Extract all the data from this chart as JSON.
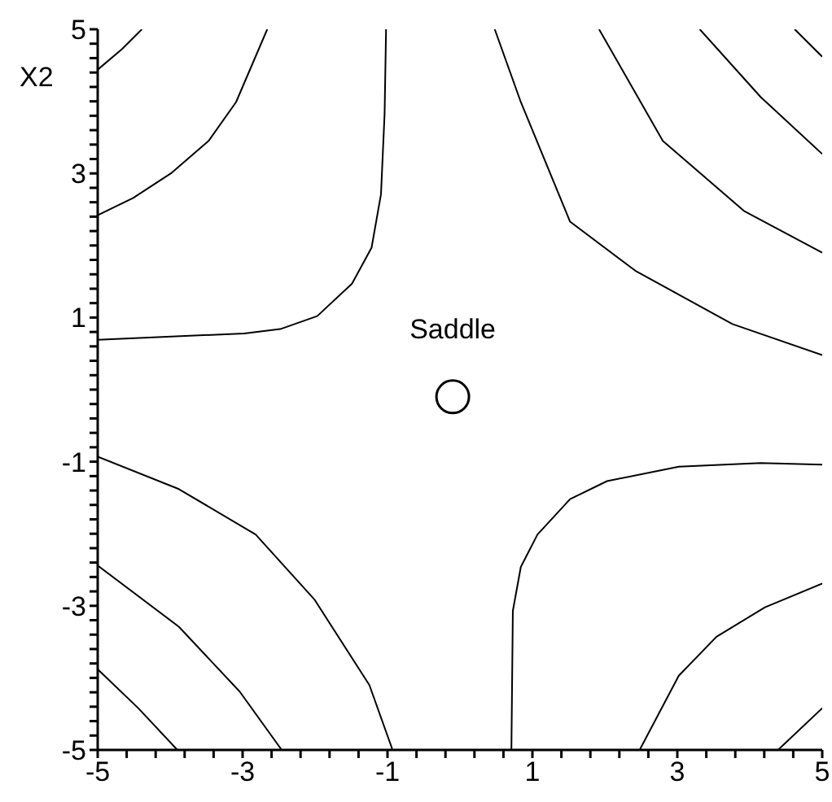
{
  "chart_data": {
    "type": "line",
    "marker": "none",
    "xlim": [
      -5,
      5
    ],
    "ylim": [
      -5,
      5
    ],
    "xticks": [
      -5,
      {
        "value": -4.6,
        "label": null
      },
      {
        "value": -4.2,
        "label": null
      },
      {
        "value": -3.8,
        "label": null
      },
      {
        "value": -3.4,
        "label": null
      },
      -3,
      {
        "value": -2.6,
        "label": null
      },
      {
        "value": -2.2,
        "label": null
      },
      {
        "value": -1.8,
        "label": null
      },
      {
        "value": -1.4,
        "label": null
      },
      -1,
      {
        "value": -0.6,
        "label": null
      },
      {
        "value": -0.2,
        "label": null
      },
      {
        "value": 0.2,
        "label": null
      },
      {
        "value": 0.6,
        "label": null
      },
      1,
      {
        "value": 1.4,
        "label": null
      },
      {
        "value": 1.8,
        "label": null
      },
      {
        "value": 2.2,
        "label": null
      },
      {
        "value": 2.6,
        "label": null
      },
      3,
      {
        "value": 3.4,
        "label": null
      },
      {
        "value": 3.8,
        "label": null
      },
      {
        "value": 4.2,
        "label": null
      },
      {
        "value": 4.6,
        "label": null
      },
      5
    ],
    "yticks": [
      -5,
      {
        "value": -4.8,
        "label": null
      },
      {
        "value": -4.6,
        "label": null
      },
      {
        "value": -4.4,
        "label": null
      },
      {
        "value": -4.2,
        "label": null
      },
      {
        "value": -4,
        "label": null
      },
      {
        "value": -3.8,
        "label": null
      },
      {
        "value": -3.6,
        "label": null
      },
      {
        "value": -3.4,
        "label": null
      },
      {
        "value": -3.2,
        "label": null
      },
      -3,
      {
        "value": -2.8,
        "label": null
      },
      {
        "value": -2.6,
        "label": null
      },
      {
        "value": -2.4,
        "label": null
      },
      {
        "value": -2.2,
        "label": null
      },
      {
        "value": -2,
        "label": null
      },
      {
        "value": -1.8,
        "label": null
      },
      {
        "value": -1.6,
        "label": null
      },
      {
        "value": -1.4,
        "label": null
      },
      {
        "value": -1.2,
        "label": null
      },
      -1,
      {
        "value": -0.8,
        "label": null
      },
      {
        "value": -0.6,
        "label": null
      },
      {
        "value": -0.4,
        "label": null
      },
      {
        "value": -0.2,
        "label": null
      },
      {
        "value": 0,
        "label": null
      },
      {
        "value": 0.2,
        "label": null
      },
      {
        "value": 0.4,
        "label": null
      },
      {
        "value": 0.6,
        "label": null
      },
      {
        "value": 0.8,
        "label": null
      },
      1,
      {
        "value": 1.2,
        "label": null
      },
      {
        "value": 1.4,
        "label": null
      },
      {
        "value": 1.6,
        "label": null
      },
      {
        "value": 1.8,
        "label": null
      },
      {
        "value": 2,
        "label": null
      },
      {
        "value": 2.2,
        "label": null
      },
      {
        "value": 2.4,
        "label": null
      },
      {
        "value": 2.6,
        "label": null
      },
      {
        "value": 2.8,
        "label": null
      },
      3,
      {
        "value": 3.2,
        "label": null
      },
      {
        "value": 3.4,
        "label": null
      },
      {
        "value": 3.6,
        "label": null
      },
      {
        "value": 3.8,
        "label": null
      },
      {
        "value": 4,
        "label": null
      },
      {
        "value": 4.2,
        "label": null
      },
      {
        "value": 4.4,
        "label": null
      },
      {
        "value": 4.6,
        "label": null
      },
      {
        "value": 4.8,
        "label": null
      },
      5
    ],
    "annotations": [
      "X2",
      {
        "text": "Saddle",
        "x": -0.1,
        "y": -0.1
      }
    ],
    "series": [
      {
        "color": "#000000",
        "x": [
          -5,
          -4.66,
          -4.39
        ],
        "values": [
          4.44,
          4.73,
          5
        ]
      },
      {
        "color": "#000000",
        "x": [
          -5,
          -4.51,
          -3.99,
          -3.47,
          -3.09,
          -2.66
        ],
        "values": [
          2.42,
          2.66,
          3.0,
          3.45,
          3.99,
          5
        ]
      },
      {
        "color": "#000000",
        "x": [
          -5,
          -2.98,
          -2.48,
          -1.97,
          -1.49,
          -1.22,
          -1.09,
          -1.04,
          -1.02
        ],
        "values": [
          0.69,
          0.78,
          0.84,
          1.02,
          1.47,
          1.97,
          2.71,
          3.83,
          5
        ]
      },
      {
        "color": "#000000",
        "x": [
          0.48,
          0.84,
          1.52,
          2.42,
          3.76,
          5
        ],
        "values": [
          5,
          3.99,
          2.33,
          1.65,
          0.91,
          0.48
        ]
      },
      {
        "color": "#000000",
        "x": [
          1.92,
          2.8,
          3.92,
          5
        ],
        "values": [
          5,
          3.45,
          2.48,
          1.9
        ]
      },
      {
        "color": "#000000",
        "x": [
          3.31,
          4.15,
          5
        ],
        "values": [
          5,
          4.06,
          3.27
        ]
      },
      {
        "color": "#000000",
        "x": [
          4.62,
          5
        ],
        "values": [
          5,
          4.62
        ]
      },
      {
        "color": "#000000",
        "x": [
          -5,
          -3.88,
          -2.82,
          -2.01,
          -1.25,
          -0.93
        ],
        "values": [
          -0.93,
          -1.38,
          -2.01,
          -2.91,
          -4.1,
          -5
        ]
      },
      {
        "color": "#000000",
        "x": [
          -5,
          -3.88,
          -3.04,
          -2.46
        ],
        "values": [
          -2.44,
          -3.29,
          -4.19,
          -5
        ]
      },
      {
        "color": "#000000",
        "x": [
          -5,
          -4.44,
          -3.9
        ],
        "values": [
          -3.88,
          -4.42,
          -5
        ]
      },
      {
        "color": "#000000",
        "x": [
          0.71,
          0.73,
          0.84,
          1.07,
          1.52,
          2.03,
          3.02,
          4.15,
          5
        ],
        "values": [
          -5,
          -3.07,
          -2.46,
          -2.01,
          -1.52,
          -1.27,
          -1.07,
          -1.02,
          -1.04
        ]
      },
      {
        "color": "#000000",
        "x": [
          2.48,
          3.02,
          3.54,
          4.21,
          5
        ],
        "values": [
          -5,
          -3.97,
          -3.43,
          -3.02,
          -2.69
        ]
      },
      {
        "color": "#000000",
        "x": [
          4.39,
          5
        ],
        "values": [
          -5,
          -4.42
        ]
      },
      {
        "type": "scatter",
        "marker": "circle",
        "color": "#000000",
        "x": [
          -0.1
        ],
        "values": [
          -0.1
        ]
      }
    ]
  }
}
